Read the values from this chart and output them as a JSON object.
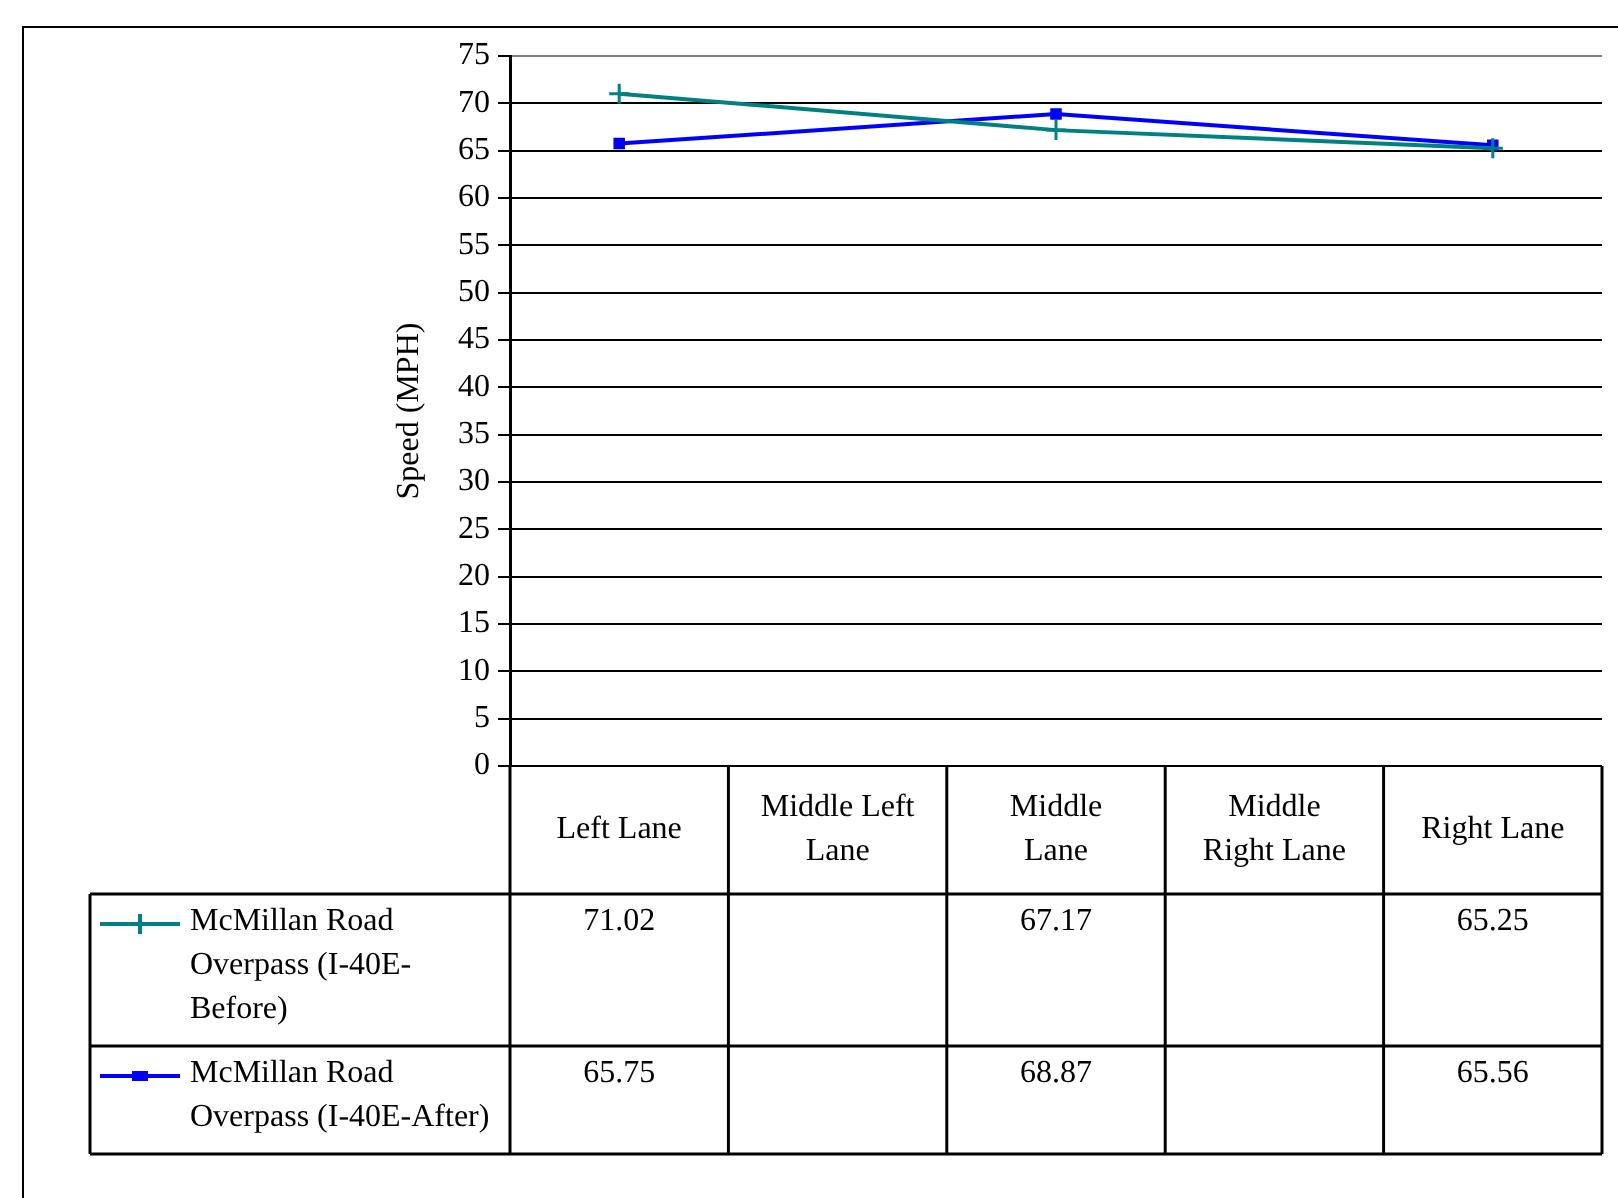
{
  "chart_data": {
    "type": "line",
    "ylabel": "Speed (MPH)",
    "categories": [
      "Left Lane",
      "Middle Left Lane",
      "Middle Lane",
      "Middle Right Lane",
      "Right Lane"
    ],
    "series": [
      {
        "name": "McMillan Road Overpass (I-40E-Before)",
        "color": "#008080",
        "marker": "cross",
        "values": [
          71.02,
          null,
          67.17,
          null,
          65.25
        ]
      },
      {
        "name": "McMillan Road Overpass (I-40E-After)",
        "color": "#0000ff",
        "marker": "square",
        "values": [
          65.75,
          null,
          68.87,
          null,
          65.56
        ]
      }
    ],
    "ylim": [
      0,
      75
    ],
    "yticks": [
      0,
      5,
      10,
      15,
      20,
      25,
      30,
      35,
      40,
      45,
      50,
      55,
      60,
      65,
      70,
      75
    ],
    "grid": "y",
    "legend": "bottom",
    "data_labels": true
  }
}
